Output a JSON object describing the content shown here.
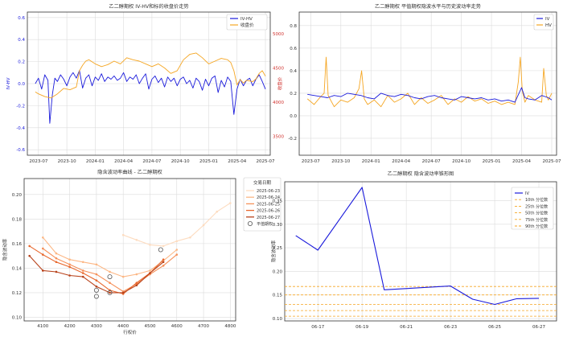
{
  "chart_data": [
    {
      "type": "line",
      "title": "乙二醇期权 IV-HV和标的收盘价走势",
      "ylabel": "IV-HV",
      "y2label": "收盘价",
      "ylim": [
        -0.65,
        0.65
      ],
      "yticks": [
        -0.6,
        -0.4,
        -0.2,
        0.0,
        0.2,
        0.4,
        0.6
      ],
      "y2lim": [
        3220,
        5320
      ],
      "y2ticks": [
        3500,
        4000,
        4500,
        5000
      ],
      "xticks": [
        "2023-07",
        "2023-10",
        "2024-01",
        "2024-04",
        "2024-07",
        "2024-10",
        "2025-01",
        "2025-04",
        "2025-07"
      ],
      "legend": [
        "IV-HV",
        "收盘价"
      ],
      "legend_position": "top-right",
      "grid": true,
      "colors": [
        "#1a1adb",
        "#f5a623"
      ],
      "series": [
        {
          "name": "IV-HV",
          "t": [
            0.5,
            1,
            1.5,
            2,
            2.5,
            2.8,
            3.2,
            3.6,
            4,
            4.5,
            5,
            5.5,
            6,
            6.5,
            7,
            7.5,
            8,
            8.5,
            9,
            9.5,
            10,
            10.5,
            11,
            11.5,
            12,
            12.5,
            13,
            13.5,
            14,
            14.5,
            15,
            15.5,
            16,
            16.5,
            17,
            17.5,
            18,
            18.5,
            19,
            19.5,
            20,
            20.5,
            21,
            21.5,
            22,
            22.5,
            23,
            23.5,
            24,
            24.5,
            25,
            25.5,
            26,
            26.5,
            27,
            27.5,
            28,
            28.5,
            29,
            29.5,
            30,
            30.5,
            31,
            31.5,
            32,
            32.5,
            33,
            33.5,
            34,
            34.5,
            35,
            35.5,
            36,
            36.5,
            37
          ],
          "values": [
            0.0,
            0.05,
            -0.05,
            0.08,
            0.03,
            -0.36,
            -0.1,
            0.05,
            0.02,
            0.08,
            0.04,
            -0.02,
            0.06,
            0.1,
            0.05,
            0.12,
            -0.04,
            0.05,
            0.08,
            -0.02,
            0.06,
            0.03,
            0.09,
            0.02,
            0.06,
            0.04,
            0.07,
            0.03,
            0.05,
            0.1,
            0.02,
            0.06,
            0.04,
            0.08,
            0.0,
            0.05,
            0.09,
            -0.05,
            0.04,
            0.07,
            0.01,
            0.05,
            -0.03,
            0.06,
            0.02,
            0.05,
            -0.02,
            0.04,
            0.06,
            0.0,
            0.03,
            -0.04,
            0.05,
            0.02,
            -0.06,
            0.04,
            -0.02,
            0.05,
            0.07,
            -0.08,
            0.03,
            -0.03,
            0.06,
            0.02,
            -0.28,
            -0.05,
            0.04,
            -0.02,
            0.03,
            0.05,
            -0.02,
            0.04,
            0.08,
            0.02,
            -0.05
          ]
        },
        {
          "name": "收盘价",
          "t": [
            0.5,
            1,
            2,
            3,
            4,
            5,
            6,
            7,
            7.5,
            8,
            8.5,
            9,
            10,
            11,
            12,
            13,
            14,
            15,
            16,
            17,
            18,
            19,
            20,
            21,
            22,
            23,
            24,
            25,
            26,
            27,
            28,
            29,
            30,
            31,
            31.5,
            32,
            32.5,
            33,
            33.5,
            34,
            35,
            35.5,
            36,
            36.5,
            37
          ],
          "values": [
            4150,
            4120,
            4080,
            4060,
            4120,
            4200,
            4180,
            4220,
            4460,
            4540,
            4600,
            4620,
            4560,
            4520,
            4550,
            4600,
            4560,
            4650,
            4620,
            4600,
            4560,
            4520,
            4560,
            4500,
            4420,
            4460,
            4620,
            4700,
            4720,
            4650,
            4560,
            4600,
            4640,
            4620,
            4580,
            4460,
            4250,
            4330,
            4280,
            4320,
            4300,
            4340,
            4420,
            4460,
            4380
          ]
        }
      ]
    },
    {
      "type": "line",
      "title": "乙二醇期权 平值期权隐波水平与历史波动率走势",
      "ylim": [
        -0.35,
        0.92
      ],
      "yticks": [
        -0.2,
        0.0,
        0.2,
        0.4,
        0.6,
        0.8
      ],
      "xticks": [
        "2023-07",
        "2023-10",
        "2024-01",
        "2024-04",
        "2024-07",
        "2024-10",
        "2025-01",
        "2025-04",
        "2025-07"
      ],
      "legend": [
        "IV",
        "HV"
      ],
      "legend_position": "top-right",
      "grid": true,
      "colors": [
        "#1a1adb",
        "#f5a623"
      ],
      "series": [
        {
          "name": "IV",
          "t": [
            0.5,
            1.5,
            2.5,
            3.5,
            4.5,
            5.5,
            6.5,
            7.5,
            8.5,
            9.5,
            10.5,
            11.5,
            12.5,
            13.5,
            14.5,
            15.5,
            16.5,
            17.5,
            18.5,
            19.5,
            20.5,
            21.5,
            22.5,
            23.5,
            24.5,
            25.5,
            26.5,
            27.5,
            28.5,
            29.5,
            30.5,
            31.5,
            32.5,
            33,
            33.5,
            34.5,
            35.5,
            36.5,
            37
          ],
          "values": [
            0.19,
            0.18,
            0.17,
            0.16,
            0.18,
            0.17,
            0.2,
            0.19,
            0.18,
            0.16,
            0.15,
            0.2,
            0.18,
            0.17,
            0.19,
            0.18,
            0.16,
            0.15,
            0.17,
            0.18,
            0.16,
            0.15,
            0.14,
            0.17,
            0.16,
            0.15,
            0.16,
            0.14,
            0.15,
            0.13,
            0.14,
            0.12,
            0.25,
            0.16,
            0.15,
            0.14,
            0.18,
            0.16,
            0.14
          ]
        },
        {
          "name": "HV",
          "t": [
            0.5,
            1.5,
            2.5,
            3,
            3.3,
            3.6,
            4.5,
            5.5,
            6.5,
            7.5,
            8.2,
            8.6,
            9,
            9.5,
            10.5,
            11.5,
            12.5,
            13.5,
            14.5,
            15.5,
            16.5,
            17.5,
            18.5,
            19.5,
            20.5,
            21.5,
            22.5,
            23.5,
            24.5,
            25.5,
            26.5,
            27.5,
            28.5,
            29.5,
            30.5,
            31.5,
            32,
            32.3,
            32.6,
            33,
            33.5,
            34.5,
            35.5,
            35.8,
            36.2,
            36.5,
            37
          ],
          "values": [
            0.15,
            0.1,
            0.17,
            0.2,
            0.52,
            0.18,
            0.08,
            0.14,
            0.12,
            0.16,
            0.24,
            0.4,
            0.15,
            0.1,
            0.14,
            0.08,
            0.18,
            0.12,
            0.15,
            0.2,
            0.1,
            0.16,
            0.11,
            0.14,
            0.18,
            0.1,
            0.15,
            0.12,
            0.17,
            0.13,
            0.15,
            0.11,
            0.13,
            0.1,
            0.12,
            0.1,
            0.3,
            0.52,
            0.22,
            0.12,
            0.18,
            0.14,
            0.12,
            0.42,
            0.18,
            0.14,
            0.2
          ]
        }
      ]
    },
    {
      "type": "line",
      "title": "隐含波动率曲线 - 乙二醇期权",
      "xlabel": "行权价",
      "ylabel": "隐含波动率",
      "xlim": [
        4030,
        4820
      ],
      "ylim": [
        0.097,
        0.213
      ],
      "xticks": [
        4100,
        4200,
        4300,
        4400,
        4500,
        4600,
        4700,
        4800
      ],
      "yticks": [
        0.1,
        0.12,
        0.14,
        0.16,
        0.18,
        0.2
      ],
      "legend_title": "交易日期",
      "legend": [
        "2025-06-23",
        "2025-06-24",
        "2025-06-25",
        "2025-06-26",
        "2025-06-27",
        "平值期权"
      ],
      "legend_position": "top-right",
      "grid": true,
      "series": [
        {
          "name": "2025-06-23",
          "color": "#fddcc0",
          "strikes": [
            4400,
            4450,
            4500,
            4550,
            4600,
            4650,
            4700,
            4750,
            4800
          ],
          "iv": [
            0.167,
            0.163,
            0.159,
            0.158,
            0.162,
            0.165,
            0.175,
            0.186,
            0.193
          ]
        },
        {
          "name": "2025-06-24",
          "color": "#fcb785",
          "strikes": [
            4100,
            4150,
            4200,
            4250,
            4300,
            4350,
            4400,
            4450,
            4500,
            4550,
            4600
          ],
          "iv": [
            0.165,
            0.152,
            0.147,
            0.145,
            0.143,
            0.137,
            0.133,
            0.135,
            0.138,
            0.146,
            0.155
          ]
        },
        {
          "name": "2025-06-25",
          "color": "#f6915a",
          "strikes": [
            4100,
            4150,
            4200,
            4250,
            4300,
            4350,
            4400,
            4450,
            4500,
            4550,
            4600
          ],
          "iv": [
            0.156,
            0.148,
            0.143,
            0.138,
            0.135,
            0.128,
            0.121,
            0.127,
            0.135,
            0.142,
            0.151
          ]
        },
        {
          "name": "2025-06-26",
          "color": "#e8682e",
          "strikes": [
            4050,
            4100,
            4150,
            4200,
            4250,
            4300,
            4350,
            4400,
            4450,
            4500,
            4550
          ],
          "iv": [
            0.158,
            0.151,
            0.145,
            0.141,
            0.136,
            0.13,
            0.122,
            0.119,
            0.128,
            0.136,
            0.147
          ]
        },
        {
          "name": "2025-06-27",
          "color": "#b8431c",
          "strikes": [
            4050,
            4100,
            4150,
            4200,
            4250,
            4300,
            4350,
            4400,
            4450,
            4500,
            4550
          ],
          "iv": [
            0.15,
            0.138,
            0.137,
            0.134,
            0.133,
            0.125,
            0.12,
            0.12,
            0.126,
            0.136,
            0.145
          ]
        }
      ],
      "atm_points": [
        {
          "x": 4540,
          "y": 0.155
        },
        {
          "x": 4350,
          "y": 0.133
        },
        {
          "x": 4300,
          "y": 0.122
        },
        {
          "x": 4300,
          "y": 0.117
        },
        {
          "x": 4350,
          "y": 0.12
        }
      ]
    },
    {
      "type": "line",
      "title": "乙二醇期权 隐含波动率锥形图",
      "ylabel": "隐含波动率",
      "ylim": [
        0.095,
        0.39
      ],
      "yticks": [
        0.1,
        0.15,
        0.2,
        0.25,
        0.3,
        0.35
      ],
      "xticks": [
        "06-17",
        "06-19",
        "06-21",
        "06-23",
        "06-25",
        "06-27"
      ],
      "legend": [
        "IV",
        "10th 分位数",
        "25th 分位数",
        "50th 分位数",
        "75th 分位数",
        "90th 分位数"
      ],
      "legend_position": "top-right",
      "grid": true,
      "series": [
        {
          "name": "IV",
          "color": "#1a1adb",
          "x": [
            "06-16",
            "06-17",
            "06-19",
            "06-20",
            "06-23",
            "06-24",
            "06-25",
            "06-26",
            "06-27"
          ],
          "values": [
            0.276,
            0.245,
            0.378,
            0.161,
            0.169,
            0.141,
            0.13,
            0.142,
            0.143
          ]
        }
      ],
      "quantiles": [
        {
          "name": "10th 分位数",
          "value": 0.105
        },
        {
          "name": "25th 分位数",
          "value": 0.117
        },
        {
          "name": "50th 分位数",
          "value": 0.13
        },
        {
          "name": "75th 分位数",
          "value": 0.15
        },
        {
          "name": "90th 分位数",
          "value": 0.168
        }
      ],
      "quantile_color": "#f5a623"
    }
  ]
}
